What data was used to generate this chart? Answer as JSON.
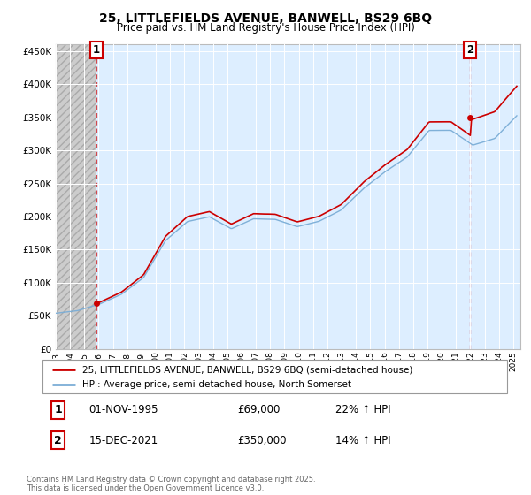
{
  "title": "25, LITTLEFIELDS AVENUE, BANWELL, BS29 6BQ",
  "subtitle": "Price paid vs. HM Land Registry's House Price Index (HPI)",
  "legend_line1": "25, LITTLEFIELDS AVENUE, BANWELL, BS29 6BQ (semi-detached house)",
  "legend_line2": "HPI: Average price, semi-detached house, North Somerset",
  "transaction1_date": "01-NOV-1995",
  "transaction1_price": "£69,000",
  "transaction1_hpi": "22% ↑ HPI",
  "transaction2_date": "15-DEC-2021",
  "transaction2_price": "£350,000",
  "transaction2_hpi": "14% ↑ HPI",
  "footnote": "Contains HM Land Registry data © Crown copyright and database right 2025.\nThis data is licensed under the Open Government Licence v3.0.",
  "ylim": [
    0,
    460000
  ],
  "yticks": [
    0,
    50000,
    100000,
    150000,
    200000,
    250000,
    300000,
    350000,
    400000,
    450000
  ],
  "price_color": "#cc0000",
  "hpi_color": "#7aadd6",
  "transaction1_x": 1995.833,
  "transaction1_y": 69000,
  "transaction2_x": 2021.958,
  "transaction2_y": 350000,
  "xmin": 1993.0,
  "xmax": 2025.5
}
